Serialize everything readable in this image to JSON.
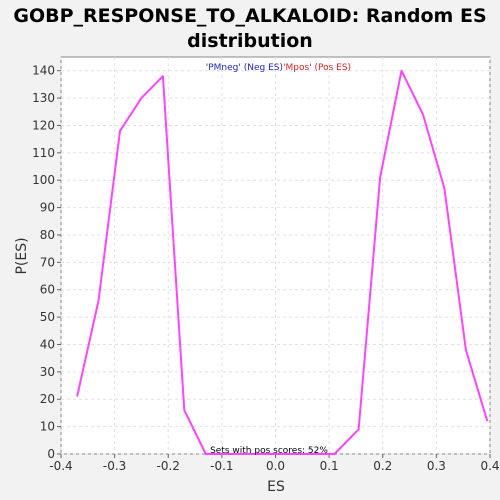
{
  "chart_data": {
    "type": "line",
    "title_line1": "GOBP_RESPONSE_TO_ALKALOID: Random ES",
    "title_line2": "distribution",
    "xlabel": "ES",
    "ylabel": "P(ES)",
    "xlim": [
      -0.4,
      0.4
    ],
    "ylim": [
      0,
      145
    ],
    "x_ticks": [
      -0.4,
      -0.3,
      -0.2,
      -0.1,
      0.0,
      0.1,
      0.2,
      0.3,
      0.4
    ],
    "x_tick_labels": [
      "-0.4",
      "-0.3",
      "-0.2",
      "-0.1",
      "0.0",
      "0.1",
      "0.2",
      "0.3",
      "0.4"
    ],
    "y_ticks": [
      0,
      10,
      20,
      30,
      40,
      50,
      60,
      70,
      80,
      90,
      100,
      110,
      120,
      130,
      140
    ],
    "y_tick_labels": [
      "0",
      "10",
      "20",
      "30",
      "40",
      "50",
      "60",
      "70",
      "80",
      "90",
      "100",
      "110",
      "120",
      "130",
      "140"
    ],
    "grid": true,
    "series": [
      {
        "color": "#ff44ff",
        "x": [
          -0.37,
          -0.33,
          -0.29,
          -0.25,
          -0.21,
          -0.17,
          -0.13,
          -0.09,
          -0.05,
          -0.01,
          0.03,
          0.07,
          0.11,
          0.155,
          0.195,
          0.235,
          0.275,
          0.315,
          0.355,
          0.395
        ],
        "y": [
          21,
          56,
          118,
          130,
          138,
          16,
          0,
          0,
          0,
          0,
          0,
          0,
          0,
          9,
          101,
          140,
          124,
          97,
          38,
          12
        ]
      }
    ],
    "legend": {
      "neg_label": "'PMneg' (Neg ES)",
      "pos_label": "'Mpos' (Pos ES)",
      "neg_color": "#2222cc",
      "pos_color": "#dd2222"
    },
    "annotation": "Sets with pos scores: 52%"
  }
}
